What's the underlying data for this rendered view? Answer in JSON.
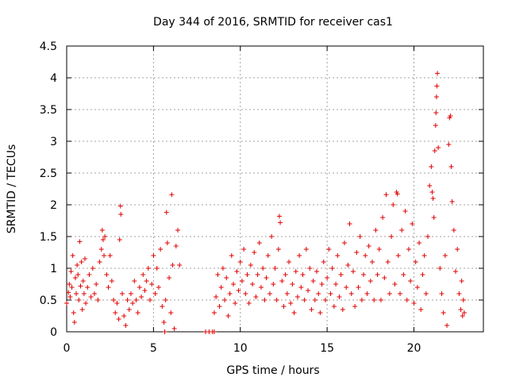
{
  "chart_data": {
    "type": "scatter",
    "title": "Day 344 of 2016, SRMTID for receiver cas1",
    "xlabel": "GPS time / hours",
    "ylabel": "SRMTID / TECUs",
    "xlim": [
      0,
      24
    ],
    "ylim": [
      0,
      4.5
    ],
    "x_ticks": [
      0,
      5,
      10,
      15,
      20
    ],
    "x_tick_labels": [
      "0",
      "5",
      "10",
      "15",
      "20"
    ],
    "y_ticks": [
      0,
      0.5,
      1,
      1.5,
      2,
      2.5,
      3,
      3.5,
      4,
      4.5
    ],
    "y_tick_labels": [
      "0",
      "0.5",
      "1",
      "1.5",
      "2",
      "2.5",
      "3",
      "3.5",
      "4",
      "4.5"
    ],
    "grid": true,
    "marker": "+",
    "color": "#e00000",
    "series": [
      {
        "name": "SRMTID",
        "points": [
          [
            0.0,
            0.45
          ],
          [
            0.1,
            0.62
          ],
          [
            0.15,
            0.75
          ],
          [
            0.2,
            0.55
          ],
          [
            0.25,
            0.95
          ],
          [
            0.3,
            0.7
          ],
          [
            0.35,
            1.2
          ],
          [
            0.4,
            0.3
          ],
          [
            0.45,
            0.15
          ],
          [
            0.5,
            0.85
          ],
          [
            0.55,
            0.6
          ],
          [
            0.6,
            1.05
          ],
          [
            0.65,
            0.9
          ],
          [
            0.7,
            0.5
          ],
          [
            0.75,
            1.42
          ],
          [
            0.8,
            0.72
          ],
          [
            0.85,
            1.1
          ],
          [
            0.9,
            0.35
          ],
          [
            0.95,
            0.8
          ],
          [
            1.0,
            0.6
          ],
          [
            1.05,
            1.15
          ],
          [
            1.1,
            0.45
          ],
          [
            1.2,
            0.7
          ],
          [
            1.3,
            0.9
          ],
          [
            1.4,
            0.55
          ],
          [
            1.5,
            1.0
          ],
          [
            1.6,
            0.6
          ],
          [
            1.7,
            0.75
          ],
          [
            1.8,
            0.5
          ],
          [
            1.9,
            1.1
          ],
          [
            2.0,
            1.3
          ],
          [
            2.05,
            1.6
          ],
          [
            2.1,
            1.45
          ],
          [
            2.15,
            1.2
          ],
          [
            2.2,
            1.5
          ],
          [
            2.3,
            0.9
          ],
          [
            2.4,
            0.7
          ],
          [
            2.5,
            1.2
          ],
          [
            2.6,
            0.8
          ],
          [
            2.7,
            0.5
          ],
          [
            2.8,
            0.3
          ],
          [
            2.9,
            0.45
          ],
          [
            3.0,
            0.2
          ],
          [
            3.05,
            1.45
          ],
          [
            3.1,
            1.98
          ],
          [
            3.12,
            1.85
          ],
          [
            3.2,
            0.6
          ],
          [
            3.3,
            0.25
          ],
          [
            3.4,
            0.1
          ],
          [
            3.5,
            0.5
          ],
          [
            3.6,
            0.35
          ],
          [
            3.7,
            0.6
          ],
          [
            3.8,
            0.45
          ],
          [
            3.9,
            0.8
          ],
          [
            4.0,
            0.5
          ],
          [
            4.1,
            0.3
          ],
          [
            4.2,
            0.7
          ],
          [
            4.3,
            0.55
          ],
          [
            4.4,
            0.9
          ],
          [
            4.5,
            0.65
          ],
          [
            4.6,
            0.8
          ],
          [
            4.7,
            1.0
          ],
          [
            4.8,
            0.5
          ],
          [
            4.9,
            0.75
          ],
          [
            5.0,
            1.2
          ],
          [
            5.1,
            0.6
          ],
          [
            5.2,
            1.0
          ],
          [
            5.3,
            0.7
          ],
          [
            5.4,
            1.3
          ],
          [
            5.5,
            0.4
          ],
          [
            5.6,
            0.15
          ],
          [
            5.65,
            0.0
          ],
          [
            5.7,
            0.5
          ],
          [
            5.75,
            1.88
          ],
          [
            5.8,
            1.4
          ],
          [
            5.9,
            0.85
          ],
          [
            6.0,
            0.3
          ],
          [
            6.05,
            2.16
          ],
          [
            6.1,
            1.05
          ],
          [
            6.2,
            0.05
          ],
          [
            6.3,
            1.35
          ],
          [
            6.4,
            1.6
          ],
          [
            6.5,
            1.05
          ],
          [
            8.0,
            0.0
          ],
          [
            8.2,
            0.0
          ],
          [
            8.4,
            0.0
          ],
          [
            8.5,
            0.0
          ],
          [
            8.5,
            0.3
          ],
          [
            8.6,
            0.55
          ],
          [
            8.7,
            0.9
          ],
          [
            8.8,
            0.4
          ],
          [
            8.9,
            0.7
          ],
          [
            9.0,
            1.0
          ],
          [
            9.1,
            0.5
          ],
          [
            9.2,
            0.85
          ],
          [
            9.3,
            0.25
          ],
          [
            9.4,
            0.6
          ],
          [
            9.5,
            1.2
          ],
          [
            9.6,
            0.75
          ],
          [
            9.7,
            0.45
          ],
          [
            9.8,
            0.95
          ],
          [
            9.9,
            0.65
          ],
          [
            10.0,
            1.1
          ],
          [
            10.1,
            0.8
          ],
          [
            10.2,
            1.3
          ],
          [
            10.3,
            0.6
          ],
          [
            10.4,
            0.9
          ],
          [
            10.5,
            0.45
          ],
          [
            10.6,
            1.05
          ],
          [
            10.7,
            0.75
          ],
          [
            10.8,
            1.25
          ],
          [
            10.9,
            0.55
          ],
          [
            11.0,
            0.9
          ],
          [
            11.1,
            1.4
          ],
          [
            11.2,
            0.7
          ],
          [
            11.3,
            1.0
          ],
          [
            11.4,
            0.5
          ],
          [
            11.5,
            0.85
          ],
          [
            11.6,
            1.2
          ],
          [
            11.7,
            0.6
          ],
          [
            11.8,
            1.5
          ],
          [
            11.9,
            0.75
          ],
          [
            12.0,
            1.0
          ],
          [
            12.1,
            0.5
          ],
          [
            12.2,
            1.3
          ],
          [
            12.25,
            1.82
          ],
          [
            12.3,
            1.72
          ],
          [
            12.4,
            0.8
          ],
          [
            12.5,
            0.4
          ],
          [
            12.6,
            0.9
          ],
          [
            12.7,
            0.6
          ],
          [
            12.8,
            1.1
          ],
          [
            12.9,
            0.45
          ],
          [
            13.0,
            0.75
          ],
          [
            13.1,
            0.3
          ],
          [
            13.2,
            0.95
          ],
          [
            13.3,
            0.55
          ],
          [
            13.4,
            1.2
          ],
          [
            13.5,
            0.7
          ],
          [
            13.6,
            0.9
          ],
          [
            13.7,
            0.5
          ],
          [
            13.8,
            1.3
          ],
          [
            13.9,
            0.65
          ],
          [
            14.0,
            1.0
          ],
          [
            14.1,
            0.35
          ],
          [
            14.2,
            0.8
          ],
          [
            14.3,
            0.5
          ],
          [
            14.4,
            0.95
          ],
          [
            14.5,
            0.6
          ],
          [
            14.6,
            0.3
          ],
          [
            14.7,
            0.75
          ],
          [
            14.8,
            1.1
          ],
          [
            14.9,
            0.5
          ],
          [
            15.0,
            0.85
          ],
          [
            15.1,
            1.3
          ],
          [
            15.2,
            0.6
          ],
          [
            15.3,
            1.0
          ],
          [
            15.4,
            0.4
          ],
          [
            15.5,
            0.75
          ],
          [
            15.6,
            1.2
          ],
          [
            15.7,
            0.55
          ],
          [
            15.8,
            0.9
          ],
          [
            15.9,
            0.35
          ],
          [
            16.0,
            1.4
          ],
          [
            16.1,
            0.7
          ],
          [
            16.2,
            1.05
          ],
          [
            16.3,
            1.7
          ],
          [
            16.4,
            0.6
          ],
          [
            16.5,
            0.95
          ],
          [
            16.6,
            0.4
          ],
          [
            16.7,
            1.25
          ],
          [
            16.8,
            0.7
          ],
          [
            16.9,
            1.5
          ],
          [
            17.0,
            0.5
          ],
          [
            17.1,
            0.9
          ],
          [
            17.2,
            1.2
          ],
          [
            17.3,
            0.6
          ],
          [
            17.4,
            1.35
          ],
          [
            17.5,
            0.8
          ],
          [
            17.6,
            1.1
          ],
          [
            17.7,
            0.5
          ],
          [
            17.8,
            1.6
          ],
          [
            17.9,
            0.9
          ],
          [
            18.0,
            1.3
          ],
          [
            18.1,
            0.5
          ],
          [
            18.2,
            1.8
          ],
          [
            18.3,
            0.85
          ],
          [
            18.4,
            2.16
          ],
          [
            18.5,
            1.1
          ],
          [
            18.6,
            0.6
          ],
          [
            18.7,
            1.5
          ],
          [
            18.8,
            2.0
          ],
          [
            18.9,
            0.75
          ],
          [
            19.0,
            2.2
          ],
          [
            19.05,
            2.17
          ],
          [
            19.1,
            1.2
          ],
          [
            19.2,
            0.6
          ],
          [
            19.3,
            1.6
          ],
          [
            19.4,
            0.9
          ],
          [
            19.5,
            1.9
          ],
          [
            19.6,
            0.5
          ],
          [
            19.7,
            1.3
          ],
          [
            19.8,
            0.8
          ],
          [
            19.9,
            1.7
          ],
          [
            20.0,
            0.45
          ],
          [
            20.1,
            1.1
          ],
          [
            20.2,
            0.7
          ],
          [
            20.3,
            1.4
          ],
          [
            20.4,
            0.35
          ],
          [
            20.5,
            0.9
          ],
          [
            20.6,
            1.2
          ],
          [
            20.7,
            0.6
          ],
          [
            20.8,
            1.5
          ],
          [
            20.9,
            2.3
          ],
          [
            21.0,
            2.6
          ],
          [
            21.05,
            2.2
          ],
          [
            21.1,
            2.1
          ],
          [
            21.15,
            1.8
          ],
          [
            21.2,
            2.85
          ],
          [
            21.25,
            3.25
          ],
          [
            21.27,
            3.45
          ],
          [
            21.3,
            3.7
          ],
          [
            21.32,
            3.87
          ],
          [
            21.35,
            4.07
          ],
          [
            21.4,
            2.9
          ],
          [
            21.5,
            1.0
          ],
          [
            21.6,
            0.6
          ],
          [
            21.7,
            0.3
          ],
          [
            21.8,
            1.2
          ],
          [
            21.9,
            0.1
          ],
          [
            22.0,
            2.95
          ],
          [
            22.05,
            3.37
          ],
          [
            22.1,
            3.4
          ],
          [
            22.15,
            2.6
          ],
          [
            22.2,
            2.05
          ],
          [
            22.3,
            1.6
          ],
          [
            22.4,
            0.95
          ],
          [
            22.5,
            1.3
          ],
          [
            22.6,
            0.6
          ],
          [
            22.7,
            0.35
          ],
          [
            22.75,
            0.8
          ],
          [
            22.8,
            0.25
          ],
          [
            22.85,
            0.5
          ],
          [
            22.9,
            0.3
          ]
        ]
      }
    ]
  }
}
